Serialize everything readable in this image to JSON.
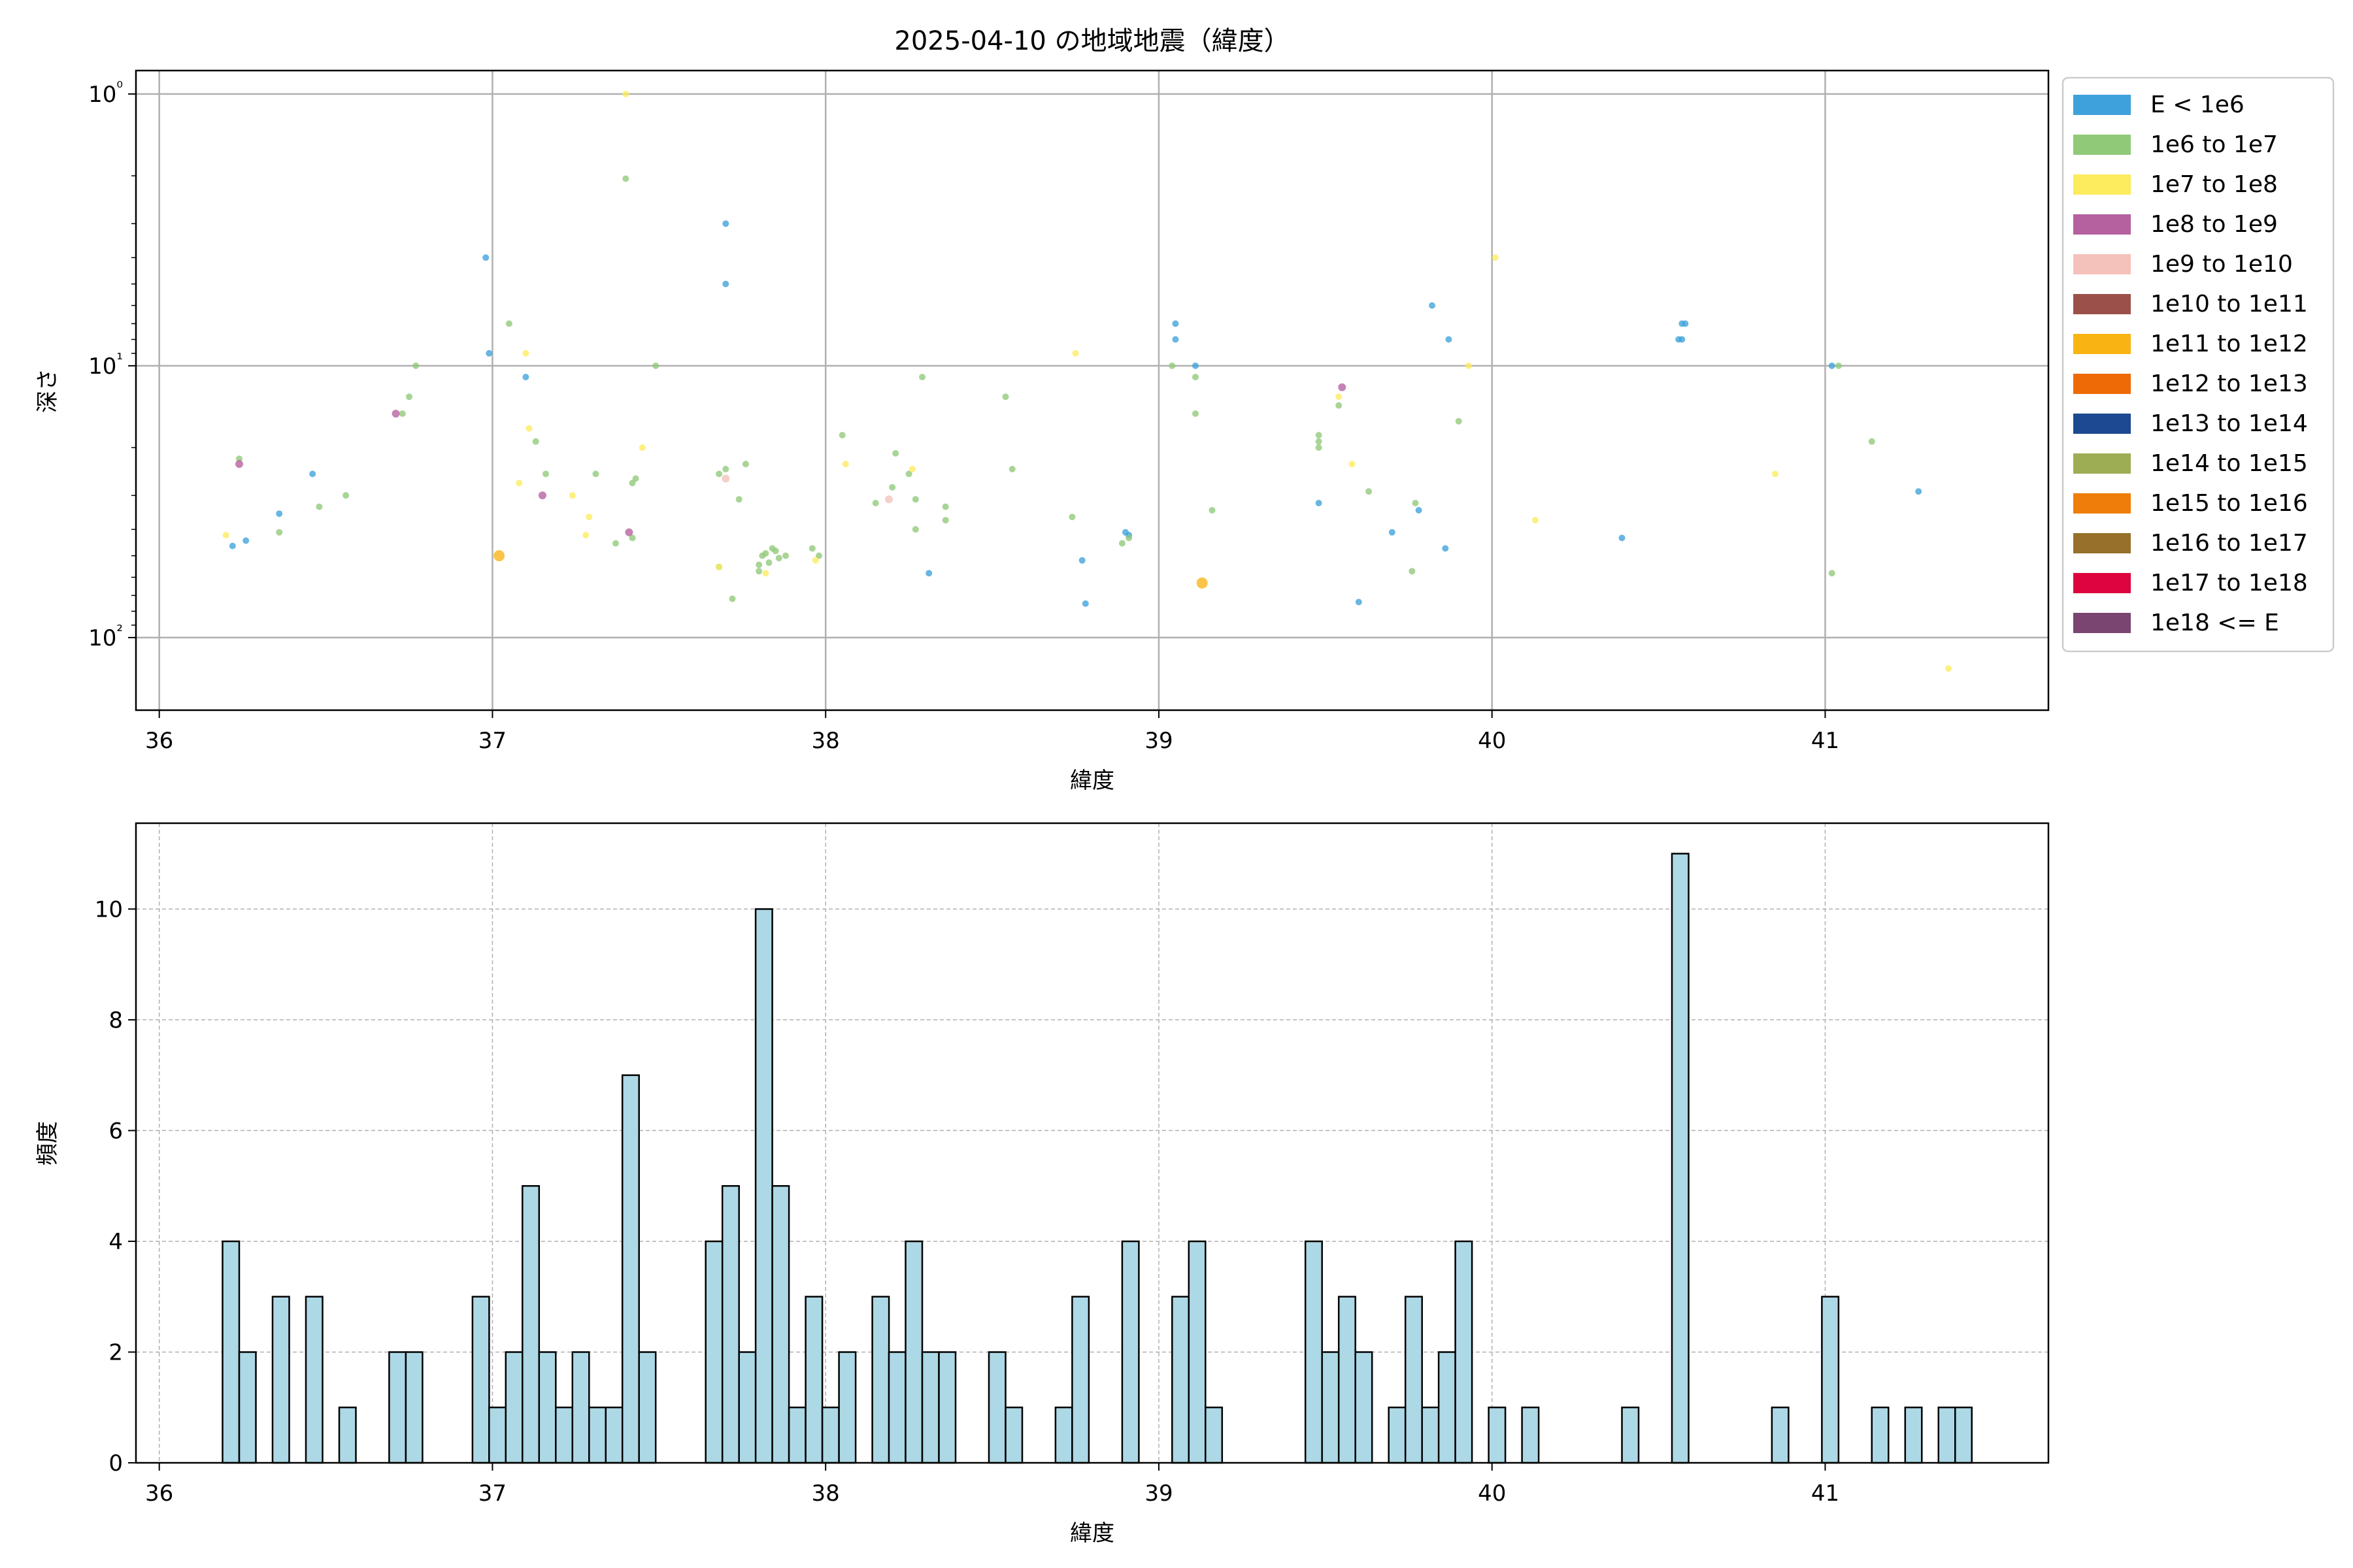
{
  "chart_data": [
    {
      "type": "scatter",
      "title": "2025-04-10 の地域地震（緯度）",
      "xlabel": "緯度",
      "ylabel": "深さ",
      "xlim": [
        35.93,
        41.67
      ],
      "ylim": [
        185,
        0.82
      ],
      "yscale": "log",
      "y_inverted": true,
      "grid": true,
      "legend_position": "outside-right",
      "x_ticks": [
        36,
        37,
        38,
        39,
        40,
        41
      ],
      "y_ticks": [
        {
          "value": 1,
          "label": "10⁰"
        },
        {
          "value": 10,
          "label": "10¹"
        },
        {
          "value": 100,
          "label": "10²"
        }
      ],
      "legend": [
        {
          "label": "E < 1e6",
          "color": "#3ea1db"
        },
        {
          "label": "1e6 to 1e7",
          "color": "#90c978"
        },
        {
          "label": "1e7 to 1e8",
          "color": "#fcec5e"
        },
        {
          "label": "1e8 to 1e9",
          "color": "#b5609f"
        },
        {
          "label": "1e9 to 1e10",
          "color": "#f4c1bb"
        },
        {
          "label": "1e10 to 1e11",
          "color": "#9b5049"
        },
        {
          "label": "1e11 to 1e12",
          "color": "#f9b414"
        },
        {
          "label": "1e12 to 1e13",
          "color": "#ee6a07"
        },
        {
          "label": "1e13 to 1e14",
          "color": "#1c4991"
        },
        {
          "label": "1e14 to 1e15",
          "color": "#9cad53"
        },
        {
          "label": "1e15 to 1e16",
          "color": "#ef7d0a"
        },
        {
          "label": "1e16 to 1e17",
          "color": "#97702b"
        },
        {
          "label": "1e17 to 1e18",
          "color": "#dd043f"
        },
        {
          "label": "1e18 <= E",
          "color": "#7a4570"
        }
      ],
      "series": [
        {
          "name": "E < 1e6",
          "color": "#3ea1db",
          "size": 5,
          "points": [
            [
              36.22,
              46
            ],
            [
              36.26,
              44
            ],
            [
              36.36,
              35
            ],
            [
              36.46,
              25
            ],
            [
              36.98,
              4
            ],
            [
              36.99,
              9
            ],
            [
              37.1,
              11
            ],
            [
              37.7,
              3
            ],
            [
              37.7,
              5
            ],
            [
              38.31,
              58
            ],
            [
              38.77,
              52
            ],
            [
              38.78,
              75
            ],
            [
              38.9,
              41
            ],
            [
              38.91,
              42
            ],
            [
              39.05,
              7
            ],
            [
              39.05,
              8
            ],
            [
              39.11,
              10
            ],
            [
              39.48,
              32
            ],
            [
              39.6,
              74
            ],
            [
              39.7,
              41
            ],
            [
              39.78,
              34
            ],
            [
              39.82,
              6
            ],
            [
              39.86,
              47
            ],
            [
              39.87,
              8
            ],
            [
              40.39,
              43
            ],
            [
              40.56,
              8
            ],
            [
              40.57,
              7
            ],
            [
              40.57,
              8
            ],
            [
              40.58,
              7
            ],
            [
              41.02,
              10
            ],
            [
              41.28,
              29
            ]
          ]
        },
        {
          "name": "1e6 to 1e7",
          "color": "#90c978",
          "size": 5,
          "points": [
            [
              36.24,
              22
            ],
            [
              36.36,
              41
            ],
            [
              36.48,
              33
            ],
            [
              36.56,
              30
            ],
            [
              36.73,
              15
            ],
            [
              36.75,
              13
            ],
            [
              36.77,
              10
            ],
            [
              37.05,
              7
            ],
            [
              37.13,
              19
            ],
            [
              37.16,
              25
            ],
            [
              37.31,
              25
            ],
            [
              37.37,
              45
            ],
            [
              37.4,
              2.05
            ],
            [
              37.42,
              27
            ],
            [
              37.42,
              43
            ],
            [
              37.43,
              26
            ],
            [
              37.49,
              10
            ],
            [
              37.68,
              25
            ],
            [
              37.68,
              55
            ],
            [
              37.7,
              24
            ],
            [
              37.72,
              72
            ],
            [
              37.74,
              31
            ],
            [
              37.76,
              23
            ],
            [
              37.8,
              54
            ],
            [
              37.8,
              57
            ],
            [
              37.81,
              50
            ],
            [
              37.82,
              49
            ],
            [
              37.83,
              53
            ],
            [
              37.84,
              47
            ],
            [
              37.85,
              48
            ],
            [
              37.86,
              51
            ],
            [
              37.88,
              50
            ],
            [
              37.96,
              47
            ],
            [
              37.98,
              50
            ],
            [
              38.05,
              18
            ],
            [
              38.15,
              32
            ],
            [
              38.2,
              28
            ],
            [
              38.21,
              21
            ],
            [
              38.25,
              25
            ],
            [
              38.27,
              31
            ],
            [
              38.27,
              40
            ],
            [
              38.29,
              11
            ],
            [
              38.36,
              33
            ],
            [
              38.36,
              37
            ],
            [
              38.54,
              13
            ],
            [
              38.56,
              24
            ],
            [
              38.74,
              36
            ],
            [
              38.89,
              45
            ],
            [
              38.91,
              43
            ],
            [
              39.04,
              10
            ],
            [
              39.11,
              15
            ],
            [
              39.11,
              11
            ],
            [
              39.16,
              34
            ],
            [
              39.48,
              18
            ],
            [
              39.48,
              20
            ],
            [
              39.48,
              19
            ],
            [
              39.54,
              14
            ],
            [
              39.63,
              29
            ],
            [
              39.76,
              57
            ],
            [
              39.77,
              32
            ],
            [
              39.9,
              16
            ],
            [
              41.02,
              58
            ],
            [
              41.04,
              10
            ],
            [
              41.14,
              19
            ]
          ]
        },
        {
          "name": "1e7 to 1e8",
          "color": "#fcec5e",
          "size": 5,
          "points": [
            [
              36.2,
              42
            ],
            [
              37.08,
              27
            ],
            [
              37.1,
              9
            ],
            [
              37.11,
              17
            ],
            [
              37.24,
              30
            ],
            [
              37.28,
              42
            ],
            [
              37.29,
              36
            ],
            [
              37.4,
              1
            ],
            [
              37.45,
              20
            ],
            [
              37.68,
              55
            ],
            [
              37.82,
              58
            ],
            [
              37.97,
              52
            ],
            [
              38.06,
              23
            ],
            [
              38.26,
              24
            ],
            [
              38.75,
              9
            ],
            [
              39.54,
              13
            ],
            [
              39.58,
              23
            ],
            [
              39.93,
              10
            ],
            [
              40.01,
              4
            ],
            [
              40.13,
              37
            ],
            [
              40.85,
              25
            ],
            [
              41.37,
              130
            ]
          ]
        },
        {
          "name": "1e8 to 1e9",
          "color": "#b5609f",
          "size": 6,
          "points": [
            [
              36.24,
              23
            ],
            [
              36.71,
              15
            ],
            [
              37.15,
              30
            ],
            [
              37.41,
              41
            ],
            [
              39.55,
              12
            ]
          ]
        },
        {
          "name": "1e9 to 1e10",
          "color": "#f4c1bb",
          "size": 6,
          "points": [
            [
              37.7,
              26
            ],
            [
              38.19,
              31
            ]
          ]
        },
        {
          "name": "1e11 to 1e12",
          "color": "#f9b414",
          "size": 8.5,
          "points": [
            [
              37.02,
              50
            ],
            [
              39.13,
              63
            ]
          ]
        }
      ]
    },
    {
      "type": "bar",
      "subtype": "histogram",
      "xlabel": "緯度",
      "ylabel": "頻度",
      "xlim": [
        35.93,
        41.67
      ],
      "ylim": [
        0,
        11.55
      ],
      "grid": true,
      "bar_color": "#add8e6",
      "bin_width": 0.05,
      "x_ticks": [
        36,
        37,
        38,
        39,
        40,
        41
      ],
      "y_ticks": [
        0,
        2,
        4,
        6,
        8,
        10
      ],
      "bin_starts": [
        36.19,
        36.24,
        36.34,
        36.44,
        36.54,
        36.69,
        36.74,
        36.94,
        36.99,
        37.04,
        37.09,
        37.14,
        37.19,
        37.24,
        37.29,
        37.34,
        37.39,
        37.44,
        37.64,
        37.69,
        37.74,
        37.79,
        37.84,
        37.89,
        37.94,
        37.99,
        38.04,
        38.14,
        38.19,
        38.24,
        38.29,
        38.34,
        38.49,
        38.54,
        38.69,
        38.74,
        38.89,
        39.04,
        39.09,
        39.14,
        39.44,
        39.49,
        39.54,
        39.59,
        39.69,
        39.74,
        39.79,
        39.84,
        39.89,
        39.99,
        40.09,
        40.39,
        40.54,
        40.84,
        40.99,
        41.14,
        41.24,
        41.34,
        41.39
      ],
      "values": [
        4,
        2,
        3,
        3,
        1,
        2,
        2,
        3,
        1,
        2,
        5,
        2,
        1,
        2,
        1,
        1,
        7,
        2,
        4,
        5,
        2,
        10,
        5,
        1,
        3,
        1,
        2,
        3,
        2,
        4,
        2,
        2,
        2,
        1,
        1,
        3,
        4,
        3,
        4,
        1,
        4,
        2,
        3,
        2,
        1,
        3,
        1,
        2,
        4,
        1,
        1,
        1,
        11,
        1,
        3,
        1,
        1,
        1,
        1
      ]
    }
  ]
}
